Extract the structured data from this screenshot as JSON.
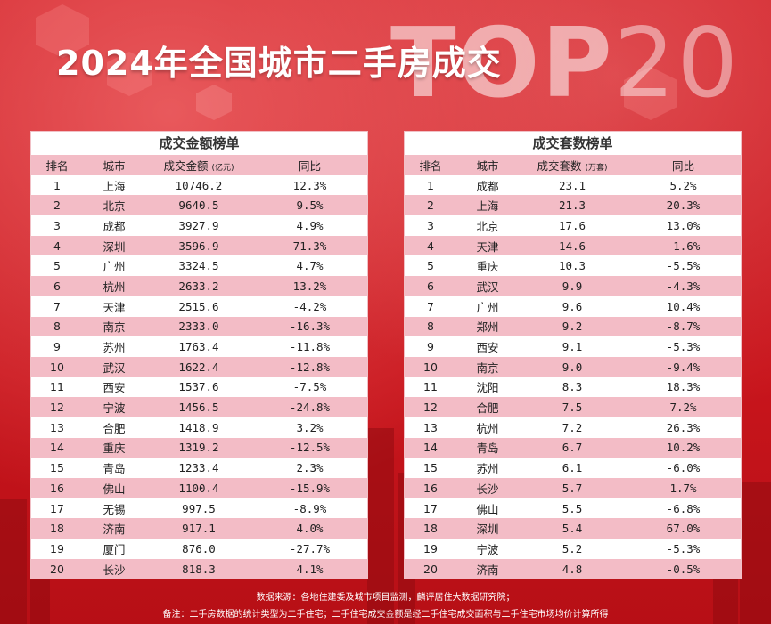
{
  "title": "2024年全国城市二手房成交",
  "watermark_top": "TOP",
  "watermark_num": "20",
  "left_table": {
    "title": "成交金额榜单",
    "headers": {
      "rank": "排名",
      "city": "城市",
      "value": "成交金额",
      "unit": "(亿元)",
      "yoy": "同比"
    },
    "rows": [
      {
        "rank": "1",
        "city": "上海",
        "value": "10746.2",
        "yoy": "12.3%"
      },
      {
        "rank": "2",
        "city": "北京",
        "value": "9640.5",
        "yoy": "9.5%"
      },
      {
        "rank": "3",
        "city": "成都",
        "value": "3927.9",
        "yoy": "4.9%"
      },
      {
        "rank": "4",
        "city": "深圳",
        "value": "3596.9",
        "yoy": "71.3%"
      },
      {
        "rank": "5",
        "city": "广州",
        "value": "3324.5",
        "yoy": "4.7%"
      },
      {
        "rank": "6",
        "city": "杭州",
        "value": "2633.2",
        "yoy": "13.2%"
      },
      {
        "rank": "7",
        "city": "天津",
        "value": "2515.6",
        "yoy": "-4.2%"
      },
      {
        "rank": "8",
        "city": "南京",
        "value": "2333.0",
        "yoy": "-16.3%"
      },
      {
        "rank": "9",
        "city": "苏州",
        "value": "1763.4",
        "yoy": "-11.8%"
      },
      {
        "rank": "10",
        "city": "武汉",
        "value": "1622.4",
        "yoy": "-12.8%"
      },
      {
        "rank": "11",
        "city": "西安",
        "value": "1537.6",
        "yoy": "-7.5%"
      },
      {
        "rank": "12",
        "city": "宁波",
        "value": "1456.5",
        "yoy": "-24.8%"
      },
      {
        "rank": "13",
        "city": "合肥",
        "value": "1418.9",
        "yoy": "3.2%"
      },
      {
        "rank": "14",
        "city": "重庆",
        "value": "1319.2",
        "yoy": "-12.5%"
      },
      {
        "rank": "15",
        "city": "青岛",
        "value": "1233.4",
        "yoy": "2.3%"
      },
      {
        "rank": "16",
        "city": "佛山",
        "value": "1100.4",
        "yoy": "-15.9%"
      },
      {
        "rank": "17",
        "city": "无锡",
        "value": "997.5",
        "yoy": "-8.9%"
      },
      {
        "rank": "18",
        "city": "济南",
        "value": "917.1",
        "yoy": "4.0%"
      },
      {
        "rank": "19",
        "city": "厦门",
        "value": "876.0",
        "yoy": "-27.7%"
      },
      {
        "rank": "20",
        "city": "长沙",
        "value": "818.3",
        "yoy": "4.1%"
      }
    ]
  },
  "right_table": {
    "title": "成交套数榜单",
    "headers": {
      "rank": "排名",
      "city": "城市",
      "value": "成交套数",
      "unit": "(万套)",
      "yoy": "同比"
    },
    "rows": [
      {
        "rank": "1",
        "city": "成都",
        "value": "23.1",
        "yoy": "5.2%"
      },
      {
        "rank": "2",
        "city": "上海",
        "value": "21.3",
        "yoy": "20.3%"
      },
      {
        "rank": "3",
        "city": "北京",
        "value": "17.6",
        "yoy": "13.0%"
      },
      {
        "rank": "4",
        "city": "天津",
        "value": "14.6",
        "yoy": "-1.6%"
      },
      {
        "rank": "5",
        "city": "重庆",
        "value": "10.3",
        "yoy": "-5.5%"
      },
      {
        "rank": "6",
        "city": "武汉",
        "value": "9.9",
        "yoy": "-4.3%"
      },
      {
        "rank": "7",
        "city": "广州",
        "value": "9.6",
        "yoy": "10.4%"
      },
      {
        "rank": "8",
        "city": "郑州",
        "value": "9.2",
        "yoy": "-8.7%"
      },
      {
        "rank": "9",
        "city": "西安",
        "value": "9.1",
        "yoy": "-5.3%"
      },
      {
        "rank": "10",
        "city": "南京",
        "value": "9.0",
        "yoy": "-9.4%"
      },
      {
        "rank": "11",
        "city": "沈阳",
        "value": "8.3",
        "yoy": "18.3%"
      },
      {
        "rank": "12",
        "city": "合肥",
        "value": "7.5",
        "yoy": "7.2%"
      },
      {
        "rank": "13",
        "city": "杭州",
        "value": "7.2",
        "yoy": "26.3%"
      },
      {
        "rank": "14",
        "city": "青岛",
        "value": "6.7",
        "yoy": "10.2%"
      },
      {
        "rank": "15",
        "city": "苏州",
        "value": "6.1",
        "yoy": "-6.0%"
      },
      {
        "rank": "16",
        "city": "长沙",
        "value": "5.7",
        "yoy": "1.7%"
      },
      {
        "rank": "17",
        "city": "佛山",
        "value": "5.5",
        "yoy": "-6.8%"
      },
      {
        "rank": "18",
        "city": "深圳",
        "value": "5.4",
        "yoy": "67.0%"
      },
      {
        "rank": "19",
        "city": "宁波",
        "value": "5.2",
        "yoy": "-5.3%"
      },
      {
        "rank": "20",
        "city": "济南",
        "value": "4.8",
        "yoy": "-0.5%"
      }
    ]
  },
  "footer": {
    "source": "数据来源：各地住建委及城市项目监测，麟评居住大数据研究院；",
    "note": "备注：二手房数据的统计类型为二手住宅；二手住宅成交金额是经二手住宅成交面积与二手住宅市场均价计算所得"
  }
}
